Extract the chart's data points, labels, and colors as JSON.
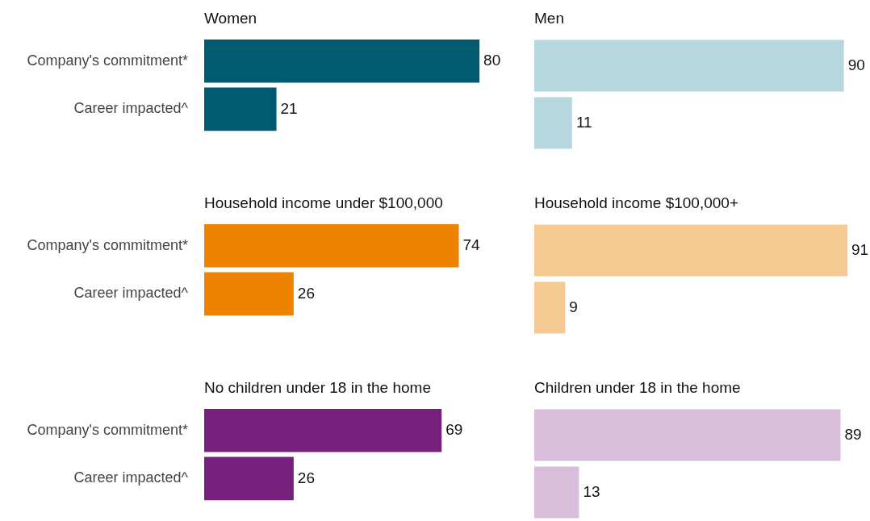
{
  "chart_data": [
    {
      "type": "bar",
      "orientation": "horizontal",
      "title": "Women",
      "categories": [
        "Company's commitment*",
        "Career impacted^"
      ],
      "values": [
        80,
        21
      ],
      "color": "#005a70",
      "data_labels": true,
      "tick_labels": "y"
    },
    {
      "type": "bar",
      "orientation": "horizontal",
      "title": "Men",
      "categories": [
        null,
        null
      ],
      "values": [
        90,
        11
      ],
      "color": "#b7d7de",
      "data_labels": true,
      "tick_labels": false
    },
    {
      "type": "bar",
      "orientation": "horizontal",
      "title": "Household income under $100,000",
      "categories": [
        "Company's commitment*",
        "Career impacted^"
      ],
      "values": [
        74,
        26
      ],
      "color": "#ee8300",
      "data_labels": true,
      "tick_labels": "y"
    },
    {
      "type": "bar",
      "orientation": "horizontal",
      "title": "Household income $100,000+",
      "categories": [
        null,
        null
      ],
      "values": [
        91,
        9
      ],
      "color": "#f5c992",
      "data_labels": true,
      "tick_labels": false
    },
    {
      "type": "bar",
      "orientation": "horizontal",
      "title": "No children under 18 in the home",
      "categories": [
        "Company's commitment*",
        "Career impacted^"
      ],
      "values": [
        69,
        26
      ],
      "color": "#771f7c",
      "data_labels": true,
      "tick_labels": "y"
    },
    {
      "type": "bar",
      "orientation": "horizontal",
      "title": "Children under 18 in the home",
      "categories": [
        null,
        null
      ],
      "values": [
        89,
        13
      ],
      "color": "#d8bedb",
      "data_labels": true,
      "tick_labels": false
    }
  ]
}
